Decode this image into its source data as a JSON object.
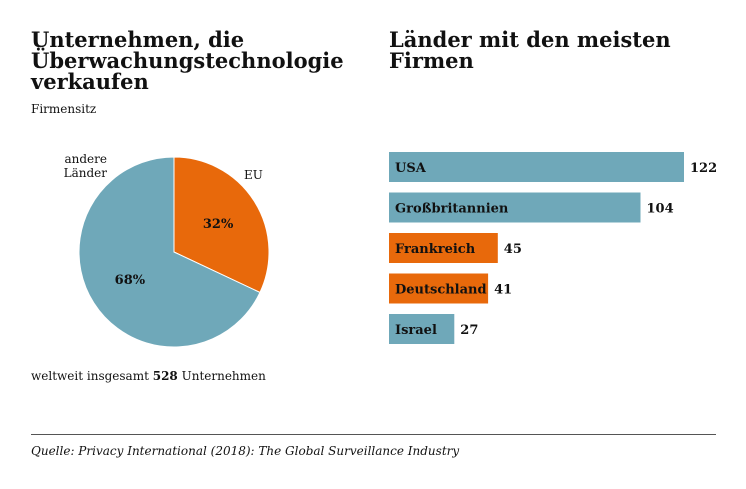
{
  "chart_data": [
    {
      "type": "pie",
      "title": "Unternehmen, die Überwachungstechnologie verkaufen",
      "subtitle": "Firmensitz",
      "slices": [
        {
          "label": "EU",
          "value": 32,
          "value_label": "32%",
          "color": "#e8690b"
        },
        {
          "label": "andere Länder",
          "value": 68,
          "value_label": "68%",
          "color": "#6fa8b9"
        }
      ],
      "total_text": {
        "prefix": "weltweit insgesamt ",
        "number": "528",
        "suffix": " Unternehmen"
      }
    },
    {
      "type": "bar",
      "orientation": "horizontal",
      "title": "Länder mit den meisten Firmen",
      "categories": [
        "USA",
        "Großbritannien",
        "Frankreich",
        "Deutschland",
        "Israel"
      ],
      "values": [
        122,
        104,
        45,
        41,
        27
      ],
      "colors": [
        "#6fa8b9",
        "#6fa8b9",
        "#e8690b",
        "#e8690b",
        "#6fa8b9"
      ]
    }
  ],
  "source": "Quelle: Privacy International (2018): The Global Surveillance Industry"
}
